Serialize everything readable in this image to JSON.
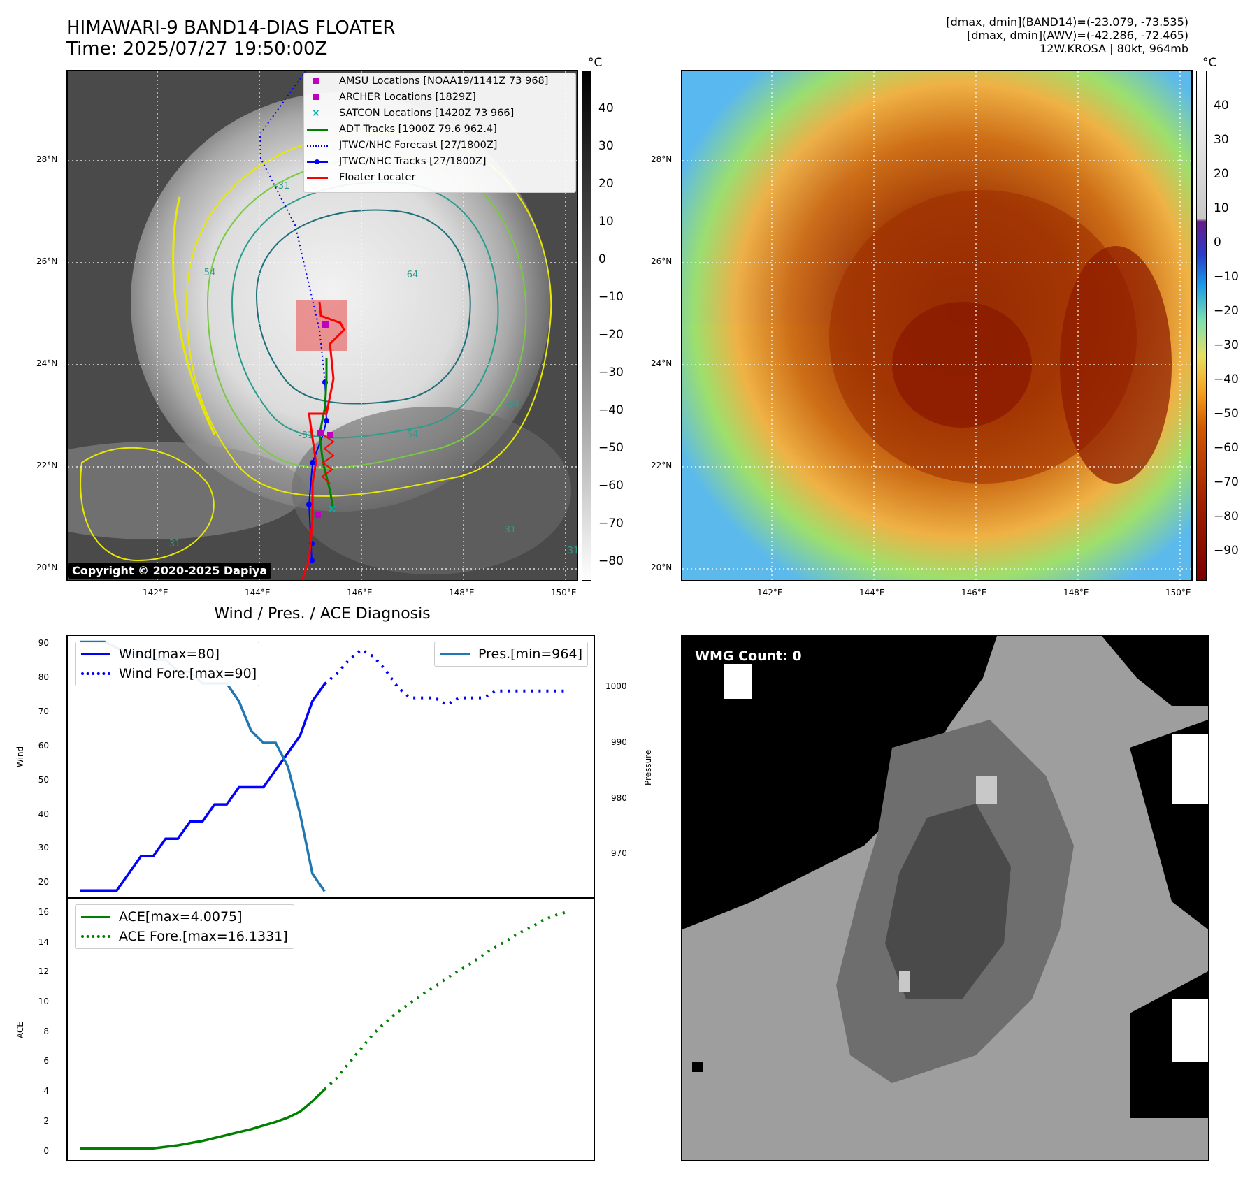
{
  "title": {
    "line1": "HIMAWARI-9 BAND14-DIAS FLOATER",
    "line2": "Time: 2025/07/27 19:50:00Z"
  },
  "info": {
    "line1": "[dmax, dmin](BAND14)=(-23.079, -73.535)",
    "line2": "[dmax, dmin](AWV)=(-42.286, -72.465)",
    "line3": "12W.KROSA | 80kt, 964mb"
  },
  "map": {
    "lat_labels": [
      "28°N",
      "26°N",
      "24°N",
      "22°N",
      "20°N"
    ],
    "lon_labels": [
      "142°E",
      "144°E",
      "146°E",
      "148°E",
      "150°E"
    ],
    "copyright": "Copyright © 2020-2025 Dapiya",
    "colorbar_unit": "°C",
    "left_colorbar_ticks": [
      "40",
      "30",
      "20",
      "10",
      "0",
      "−10",
      "−20",
      "−30",
      "−40",
      "−50",
      "−60",
      "−70",
      "−80"
    ],
    "right_colorbar_ticks": [
      "40",
      "30",
      "20",
      "10",
      "0",
      "−10",
      "−20",
      "−30",
      "−40",
      "−50",
      "−60",
      "−70",
      "−80",
      "−90"
    ],
    "contour_labels": [
      "-31",
      "-54",
      "-64",
      "-31",
      "-54",
      "-64",
      "-31",
      "-31",
      "-31"
    ],
    "legend": [
      {
        "label": "AMSU Locations [NOAA19/1141Z 73 968]",
        "color": "#c000c0",
        "style": "square"
      },
      {
        "label": "ARCHER Locations [1829Z]",
        "color": "#c000c0",
        "style": "square"
      },
      {
        "label": "SATCON Locations [1420Z 73 966]",
        "color": "#00b0b0",
        "style": "cross"
      },
      {
        "label": "ADT Tracks [1900Z 79.6 962.4]",
        "color": "#008000",
        "style": "line"
      },
      {
        "label": "JTWC/NHC Forecast [27/1800Z]",
        "color": "#0000ff",
        "style": "dotted"
      },
      {
        "label": "JTWC/NHC Tracks [27/1800Z]",
        "color": "#0000ff",
        "style": "line-dot"
      },
      {
        "label": "Floater Locater",
        "color": "#ff0000",
        "style": "line"
      }
    ]
  },
  "diagnosis": {
    "title": "Wind / Pres. / ACE Diagnosis",
    "wind_ylabel": "Wind",
    "pres_ylabel": "Pressure",
    "ace_ylabel": "ACE",
    "wind_ticks": [
      "90",
      "80",
      "70",
      "60",
      "50",
      "40",
      "30",
      "20"
    ],
    "pres_ticks": [
      "1000",
      "990",
      "980",
      "970"
    ],
    "ace_ticks": [
      "16",
      "14",
      "12",
      "10",
      "8",
      "6",
      "4",
      "2",
      "0"
    ],
    "legend_wind": [
      "Wind[max=80]",
      "Wind Fore.[max=90]"
    ],
    "legend_pres": [
      "Pres.[min=964]"
    ],
    "legend_ace": [
      "ACE[max=4.0075]",
      "ACE Fore.[max=16.1331]"
    ],
    "wmg_label": "WMG Count: 0"
  },
  "chart_data": [
    {
      "type": "line",
      "title": "Wind / Pres. / ACE Diagnosis",
      "ylabel": "Wind",
      "ylim": [
        18,
        94
      ],
      "y2label": "Pressure",
      "y2lim": [
        963,
        1007
      ],
      "series": [
        {
          "name": "Wind[max=80]",
          "axis": "wind",
          "style": "solid",
          "color": "#0000ff",
          "x": [
            0,
            1,
            2,
            3,
            4,
            5,
            6,
            7,
            8,
            9,
            10,
            11,
            12,
            13,
            14,
            15,
            16,
            17,
            18,
            19,
            20
          ],
          "values": [
            20,
            20,
            20,
            20,
            25,
            30,
            30,
            35,
            35,
            40,
            40,
            45,
            45,
            50,
            50,
            50,
            55,
            60,
            65,
            75,
            80
          ]
        },
        {
          "name": "Wind Fore.[max=90]",
          "axis": "wind",
          "style": "dotted",
          "color": "#0000ff",
          "x": [
            20,
            21,
            22,
            23,
            24,
            25,
            26,
            27,
            28,
            29,
            30,
            31,
            32,
            33,
            34,
            35,
            36,
            37,
            38,
            39,
            40
          ],
          "values": [
            80,
            83,
            87,
            90,
            88,
            84,
            79,
            76,
            76,
            76,
            74,
            76,
            76,
            76,
            78,
            78,
            78,
            78,
            78,
            78,
            78
          ]
        },
        {
          "name": "Pres.[min=964]",
          "axis": "pressure",
          "style": "solid",
          "color": "#1f77b4",
          "x": [
            0,
            1,
            2,
            3,
            4,
            5,
            6,
            7,
            8,
            9,
            10,
            11,
            12,
            13,
            14,
            15,
            16,
            17,
            18,
            19,
            20
          ],
          "values": [
            1006,
            1006,
            1006,
            1005,
            1004,
            1004,
            1003,
            1003,
            1001,
            1001,
            999,
            999,
            999,
            996,
            991,
            989,
            989,
            985,
            977,
            967,
            964
          ]
        }
      ]
    },
    {
      "type": "line",
      "ylabel": "ACE",
      "ylim": [
        -0.8,
        17
      ],
      "series": [
        {
          "name": "ACE[max=4.0075]",
          "style": "solid",
          "color": "#008000",
          "x": [
            0,
            1,
            2,
            3,
            4,
            5,
            6,
            7,
            8,
            9,
            10,
            11,
            12,
            13,
            14,
            15,
            16,
            17,
            18,
            19,
            20
          ],
          "values": [
            0,
            0,
            0,
            0,
            0,
            0,
            0,
            0.1,
            0.2,
            0.35,
            0.5,
            0.7,
            0.9,
            1.1,
            1.3,
            1.55,
            1.8,
            2.1,
            2.5,
            3.2,
            4.0075
          ]
        },
        {
          "name": "ACE Fore.[max=16.1331]",
          "style": "dotted",
          "color": "#008000",
          "x": [
            20,
            21,
            22,
            23,
            24,
            25,
            26,
            27,
            28,
            29,
            30,
            31,
            32,
            33,
            34,
            35,
            36,
            37,
            38,
            39,
            40
          ],
          "values": [
            4.0075,
            4.8,
            5.8,
            6.8,
            7.8,
            8.6,
            9.3,
            9.9,
            10.5,
            11.0,
            11.6,
            12.1,
            12.6,
            13.2,
            13.7,
            14.2,
            14.7,
            15.1,
            15.6,
            15.9,
            16.1331
          ]
        }
      ]
    }
  ]
}
